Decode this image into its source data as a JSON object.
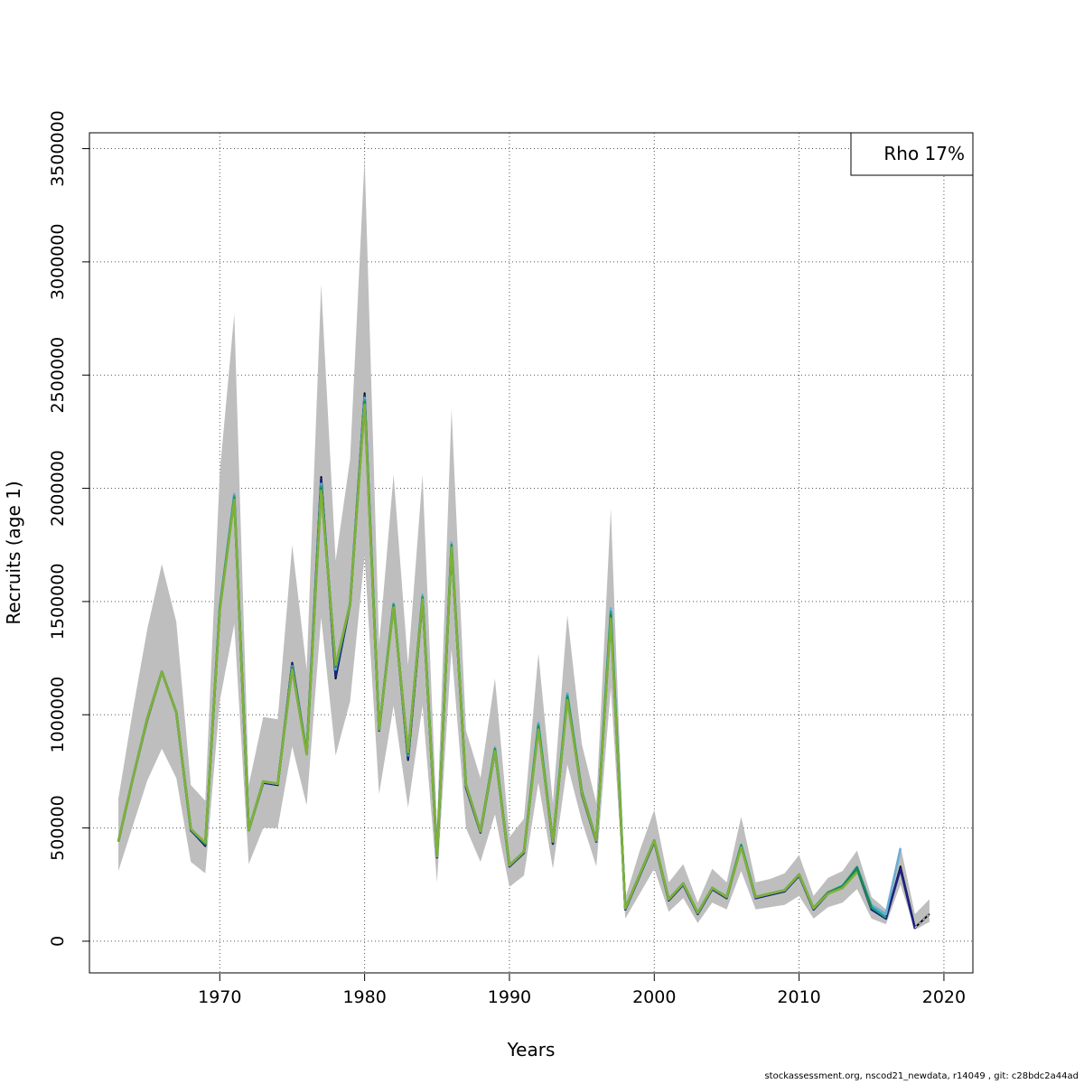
{
  "chart_data": {
    "type": "line",
    "xlabel": "Years",
    "ylabel": "Recruits (age 1)",
    "xlim": [
      1961,
      2022
    ],
    "ylim": [
      -140000,
      3570000
    ],
    "x_ticks": [
      1970,
      1980,
      1990,
      2000,
      2010,
      2020
    ],
    "y_ticks": [
      0,
      500000,
      1000000,
      1500000,
      2000000,
      2500000,
      3000000,
      3500000
    ],
    "grid": true,
    "legend_position": "top-right",
    "legend": "Rho 17%",
    "confidence_band": {
      "x": [
        1963,
        1964,
        1965,
        1966,
        1967,
        1968,
        1969,
        1970,
        1971,
        1972,
        1973,
        1974,
        1975,
        1976,
        1977,
        1978,
        1979,
        1980,
        1981,
        1982,
        1983,
        1984,
        1985,
        1986,
        1987,
        1988,
        1989,
        1990,
        1991,
        1992,
        1993,
        1994,
        1995,
        1996,
        1997,
        1998,
        1999,
        2000,
        2001,
        2002,
        2003,
        2004,
        2005,
        2006,
        2007,
        2008,
        2009,
        2010,
        2011,
        2012,
        2013,
        2014,
        2015,
        2016,
        2017,
        2018,
        2019
      ],
      "lower": [
        310000,
        510000,
        710000,
        850000,
        720000,
        350000,
        300000,
        1060000,
        1400000,
        340000,
        500000,
        500000,
        860000,
        600000,
        1430000,
        820000,
        1060000,
        1700000,
        650000,
        1040000,
        590000,
        1040000,
        260000,
        1290000,
        500000,
        350000,
        560000,
        240000,
        290000,
        700000,
        320000,
        780000,
        530000,
        330000,
        1120000,
        100000,
        210000,
        320000,
        130000,
        190000,
        80000,
        170000,
        140000,
        310000,
        140000,
        150000,
        160000,
        200000,
        100000,
        150000,
        170000,
        230000,
        100000,
        75000,
        250000,
        50000,
        85000
      ],
      "upper": [
        630000,
        1020000,
        1380000,
        1665000,
        1410000,
        690000,
        620000,
        2070000,
        2770000,
        690000,
        990000,
        980000,
        1750000,
        1200000,
        2900000,
        1680000,
        2130000,
        3460000,
        1310000,
        2060000,
        1220000,
        2060000,
        510000,
        2350000,
        930000,
        720000,
        1160000,
        460000,
        540000,
        1270000,
        610000,
        1440000,
        870000,
        610000,
        1910000,
        190000,
        400000,
        580000,
        260000,
        340000,
        170000,
        320000,
        260000,
        550000,
        260000,
        275000,
        300000,
        380000,
        200000,
        280000,
        310000,
        400000,
        195000,
        140000,
        420000,
        120000,
        185000
      ]
    },
    "series": [
      {
        "color": "#000000",
        "x": [
          1963,
          1964,
          1965,
          1966,
          1967,
          1968,
          1969,
          1970,
          1971,
          1972,
          1973,
          1974,
          1975,
          1976,
          1977,
          1978,
          1979,
          1980,
          1981,
          1982,
          1983,
          1984,
          1985,
          1986,
          1987,
          1988,
          1989,
          1990,
          1991,
          1992,
          1993,
          1994,
          1995,
          1996,
          1997,
          1998,
          1999,
          2000,
          2001,
          2002,
          2003,
          2004,
          2005,
          2006,
          2007,
          2008,
          2009,
          2010,
          2011,
          2012,
          2013,
          2014,
          2015,
          2016,
          2017,
          2018,
          2019
        ],
        "values": [
          440000,
          720000,
          980000,
          1190000,
          1010000,
          490000,
          420000,
          1470000,
          1960000,
          490000,
          700000,
          690000,
          1230000,
          830000,
          2050000,
          1160000,
          1490000,
          2420000,
          930000,
          1490000,
          800000,
          1510000,
          370000,
          1750000,
          680000,
          480000,
          840000,
          330000,
          390000,
          950000,
          430000,
          1080000,
          650000,
          440000,
          1450000,
          140000,
          290000,
          440000,
          180000,
          250000,
          120000,
          230000,
          190000,
          420000,
          190000,
          205000,
          220000,
          290000,
          140000,
          210000,
          240000,
          320000,
          140000,
          100000,
          330000,
          60000,
          120000
        ]
      },
      {
        "color": "#1a237e",
        "x": [
          1963,
          1964,
          1965,
          1966,
          1967,
          1968,
          1969,
          1970,
          1971,
          1972,
          1973,
          1974,
          1975,
          1976,
          1977,
          1978,
          1979,
          1980,
          1981,
          1982,
          1983,
          1984,
          1985,
          1986,
          1987,
          1988,
          1989,
          1990,
          1991,
          1992,
          1993,
          1994,
          1995,
          1996,
          1997,
          1998,
          1999,
          2000,
          2001,
          2002,
          2003,
          2004,
          2005,
          2006,
          2007,
          2008,
          2009,
          2010,
          2011,
          2012,
          2013,
          2014,
          2015,
          2016,
          2017,
          2018
        ],
        "values": [
          440000,
          720000,
          980000,
          1190000,
          1010000,
          490000,
          425000,
          1470000,
          1960000,
          490000,
          700000,
          690000,
          1225000,
          830000,
          2040000,
          1170000,
          1490000,
          2410000,
          930000,
          1490000,
          805000,
          1510000,
          370000,
          1745000,
          680000,
          480000,
          840000,
          330000,
          390000,
          950000,
          430000,
          1080000,
          650000,
          440000,
          1445000,
          140000,
          290000,
          440000,
          180000,
          250000,
          120000,
          230000,
          190000,
          420000,
          190000,
          205000,
          220000,
          290000,
          140000,
          210000,
          240000,
          320000,
          140000,
          100000,
          320000,
          55000
        ]
      },
      {
        "color": "#6baed6",
        "x": [
          1963,
          1964,
          1965,
          1966,
          1967,
          1968,
          1969,
          1970,
          1971,
          1972,
          1973,
          1974,
          1975,
          1976,
          1977,
          1978,
          1979,
          1980,
          1981,
          1982,
          1983,
          1984,
          1985,
          1986,
          1987,
          1988,
          1989,
          1990,
          1991,
          1992,
          1993,
          1994,
          1995,
          1996,
          1997,
          1998,
          1999,
          2000,
          2001,
          2002,
          2003,
          2004,
          2005,
          2006,
          2007,
          2008,
          2009,
          2010,
          2011,
          2012,
          2013,
          2014,
          2015,
          2016,
          2017
        ],
        "values": [
          440000,
          720000,
          985000,
          1190000,
          1010000,
          495000,
          430000,
          1475000,
          1975000,
          490000,
          705000,
          695000,
          1215000,
          830000,
          2020000,
          1200000,
          1495000,
          2400000,
          935000,
          1490000,
          820000,
          1530000,
          375000,
          1760000,
          690000,
          485000,
          855000,
          335000,
          395000,
          965000,
          440000,
          1095000,
          660000,
          445000,
          1470000,
          145000,
          295000,
          445000,
          185000,
          255000,
          125000,
          235000,
          195000,
          425000,
          195000,
          210000,
          225000,
          295000,
          145000,
          215000,
          245000,
          330000,
          160000,
          120000,
          410000
        ]
      },
      {
        "color": "#17a589",
        "x": [
          1963,
          1964,
          1965,
          1966,
          1967,
          1968,
          1969,
          1970,
          1971,
          1972,
          1973,
          1974,
          1975,
          1976,
          1977,
          1978,
          1979,
          1980,
          1981,
          1982,
          1983,
          1984,
          1985,
          1986,
          1987,
          1988,
          1989,
          1990,
          1991,
          1992,
          1993,
          1994,
          1995,
          1996,
          1997,
          1998,
          1999,
          2000,
          2001,
          2002,
          2003,
          2004,
          2005,
          2006,
          2007,
          2008,
          2009,
          2010,
          2011,
          2012,
          2013,
          2014,
          2015,
          2016
        ],
        "values": [
          440000,
          720000,
          985000,
          1190000,
          1010000,
          495000,
          430000,
          1470000,
          1965000,
          490000,
          705000,
          695000,
          1210000,
          830000,
          2010000,
          1210000,
          1490000,
          2390000,
          935000,
          1485000,
          825000,
          1520000,
          375000,
          1750000,
          690000,
          485000,
          850000,
          335000,
          395000,
          955000,
          440000,
          1085000,
          660000,
          445000,
          1455000,
          145000,
          295000,
          445000,
          185000,
          255000,
          125000,
          235000,
          195000,
          425000,
          195000,
          210000,
          225000,
          295000,
          145000,
          215000,
          245000,
          320000,
          150000,
          105000
        ]
      },
      {
        "color": "#1e8449",
        "x": [
          1963,
          1964,
          1965,
          1966,
          1967,
          1968,
          1969,
          1970,
          1971,
          1972,
          1973,
          1974,
          1975,
          1976,
          1977,
          1978,
          1979,
          1980,
          1981,
          1982,
          1983,
          1984,
          1985,
          1986,
          1987,
          1988,
          1989,
          1990,
          1991,
          1992,
          1993,
          1994,
          1995,
          1996,
          1997,
          1998,
          1999,
          2000,
          2001,
          2002,
          2003,
          2004,
          2005,
          2006,
          2007,
          2008,
          2009,
          2010,
          2011,
          2012,
          2013,
          2014,
          2015
        ],
        "values": [
          440000,
          720000,
          985000,
          1190000,
          1010000,
          495000,
          432000,
          1465000,
          1955000,
          490000,
          705000,
          695000,
          1205000,
          830000,
          2000000,
          1215000,
          1490000,
          2380000,
          935000,
          1480000,
          830000,
          1515000,
          375000,
          1745000,
          690000,
          485000,
          845000,
          335000,
          395000,
          945000,
          440000,
          1075000,
          660000,
          445000,
          1440000,
          145000,
          295000,
          445000,
          185000,
          255000,
          125000,
          235000,
          195000,
          420000,
          195000,
          210000,
          225000,
          295000,
          145000,
          215000,
          240000,
          325000,
          145000
        ]
      },
      {
        "color": "#7fb03a",
        "x": [
          1963,
          1964,
          1965,
          1966,
          1967,
          1968,
          1969,
          1970,
          1971,
          1972,
          1973,
          1974,
          1975,
          1976,
          1977,
          1978,
          1979,
          1980,
          1981,
          1982,
          1983,
          1984,
          1985,
          1986,
          1987,
          1988,
          1989,
          1990,
          1991,
          1992,
          1993,
          1994,
          1995,
          1996,
          1997,
          1998,
          1999,
          2000,
          2001,
          2002,
          2003,
          2004,
          2005,
          2006,
          2007,
          2008,
          2009,
          2010,
          2011,
          2012,
          2013,
          2014
        ],
        "values": [
          440000,
          720000,
          985000,
          1190000,
          1010000,
          495000,
          435000,
          1460000,
          1950000,
          490000,
          705000,
          695000,
          1200000,
          825000,
          1990000,
          1220000,
          1490000,
          2370000,
          935000,
          1475000,
          835000,
          1510000,
          375000,
          1740000,
          690000,
          485000,
          840000,
          335000,
          395000,
          935000,
          440000,
          1065000,
          655000,
          445000,
          1425000,
          145000,
          295000,
          445000,
          185000,
          255000,
          125000,
          235000,
          195000,
          415000,
          195000,
          210000,
          225000,
          295000,
          145000,
          210000,
          235000,
          305000
        ]
      }
    ]
  },
  "footer": "stockassessment.org, nscod21_newdata, r14049 , git: c28bdc2a44ad"
}
